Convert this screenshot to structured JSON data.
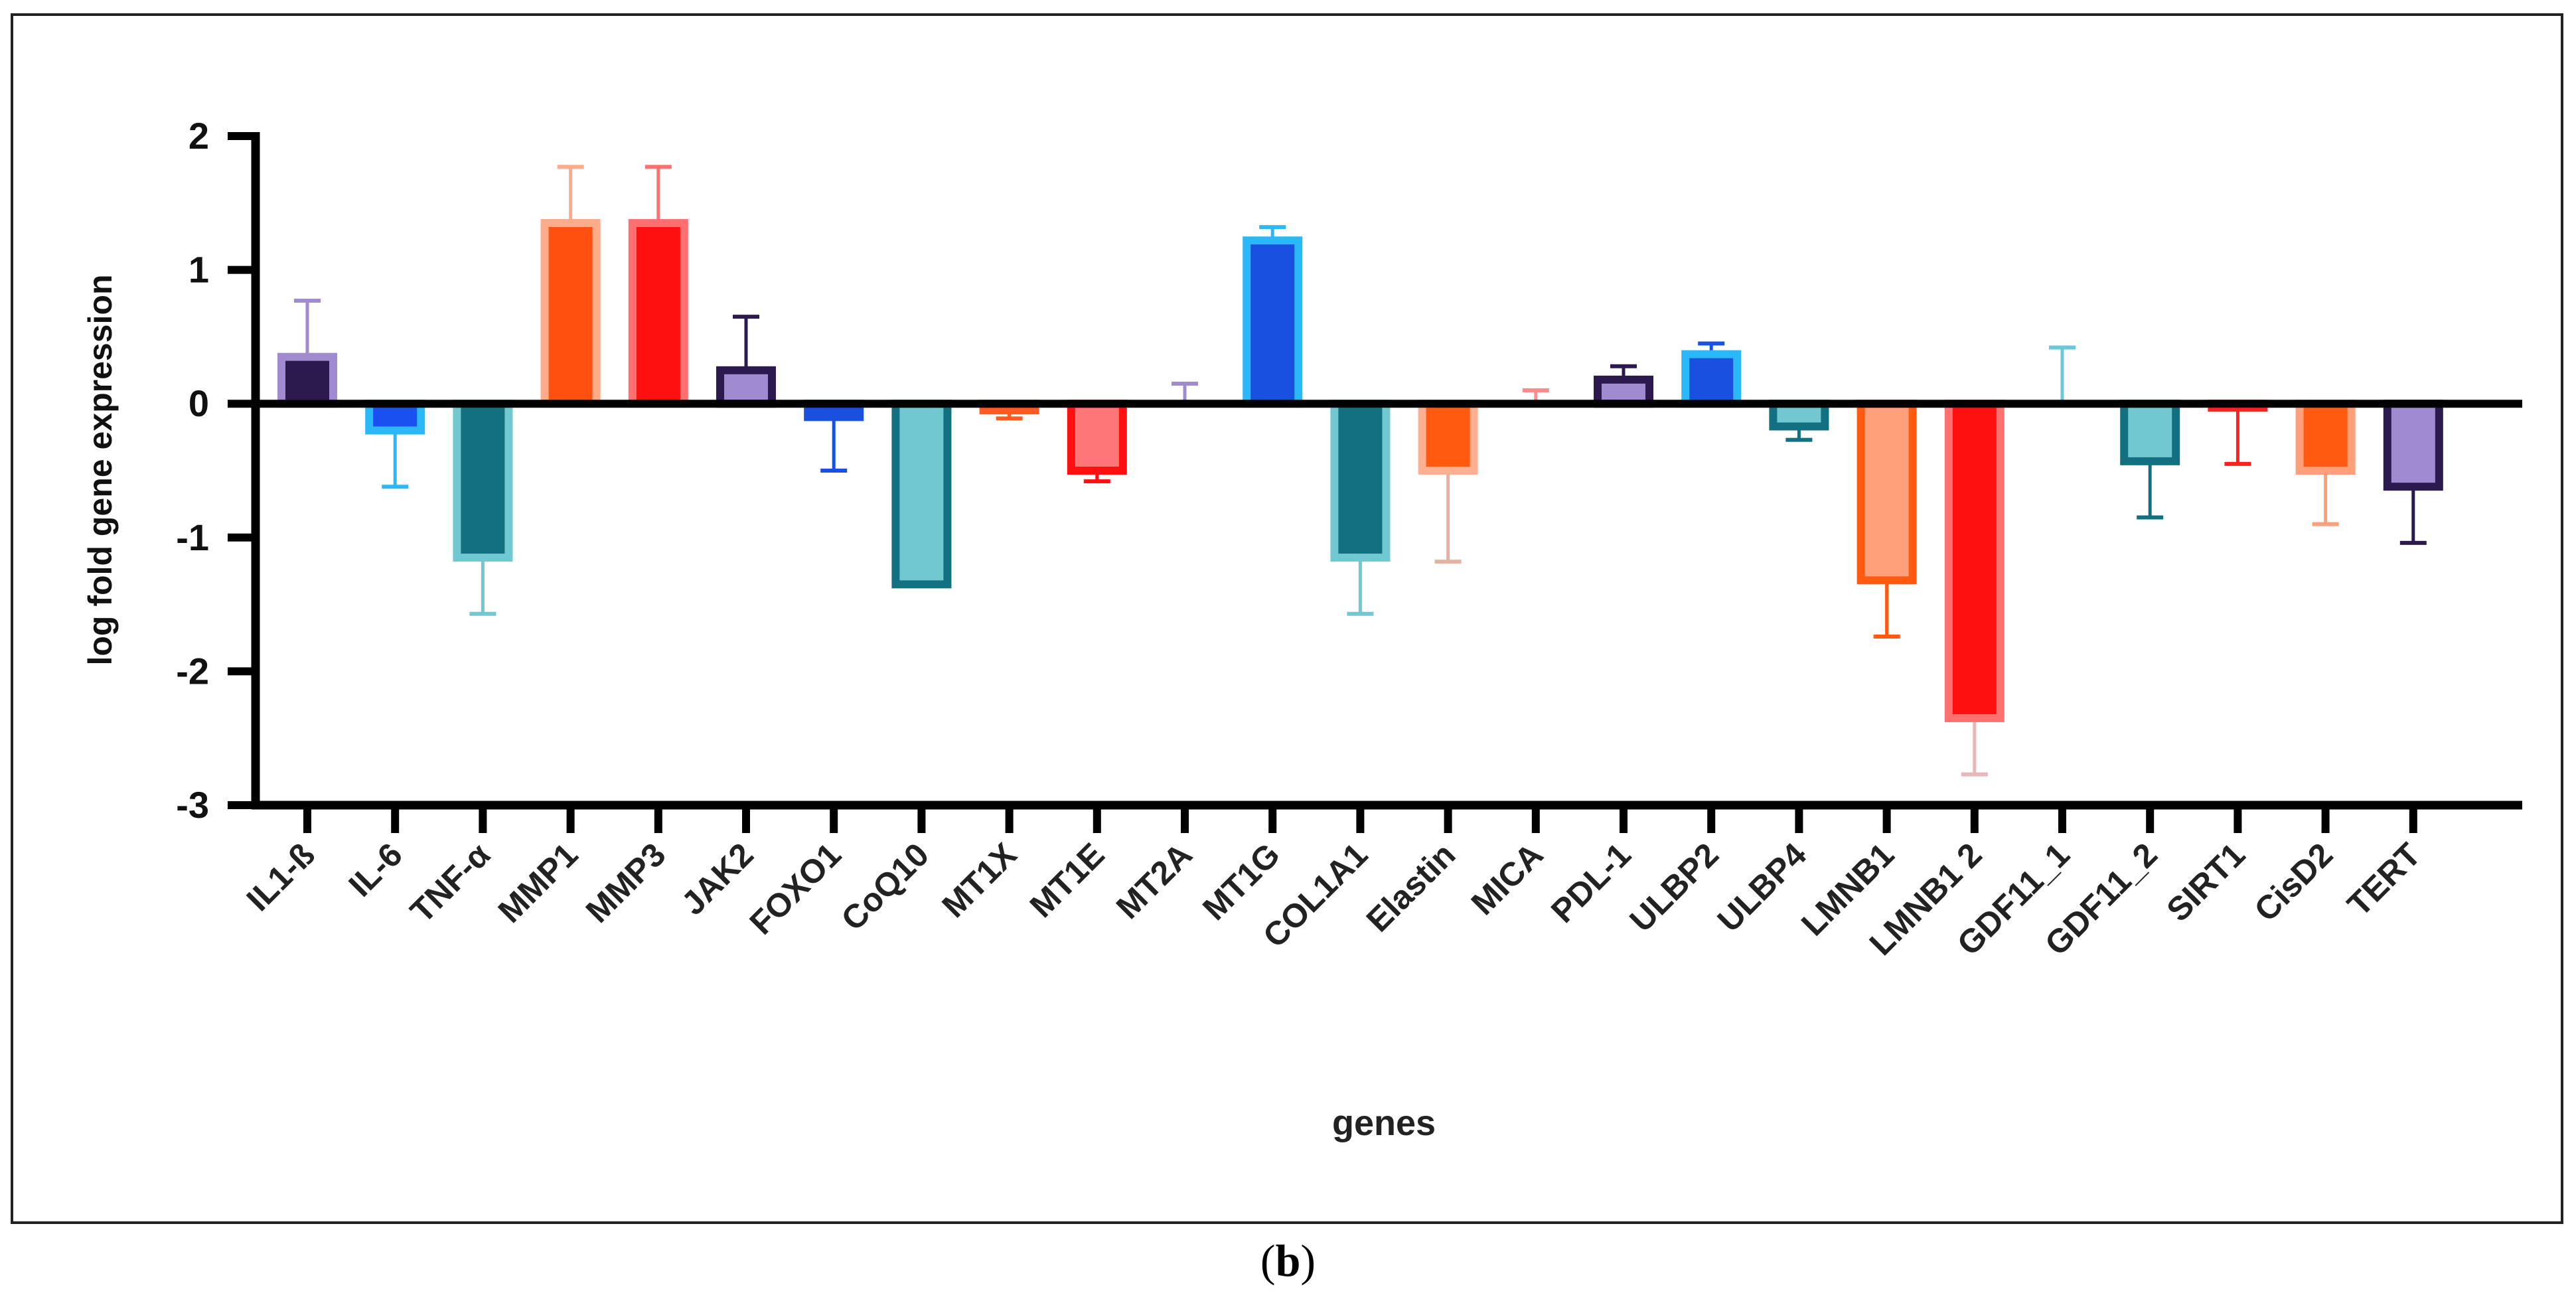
{
  "chart_data": {
    "type": "bar",
    "title": "",
    "xlabel": "genes",
    "ylabel": "log fold gene expression",
    "ylim": [
      -3,
      2
    ],
    "yticks": [
      2,
      1,
      0,
      -1,
      -2,
      -3
    ],
    "ytick_labels": [
      "2",
      "1",
      "0",
      "-1",
      "-2",
      "-3"
    ],
    "categories": [
      "IL1-ß",
      "IL-6",
      "TNF-α",
      "MMP1",
      "MMP3",
      "JAK2",
      "FOXO1",
      "CoQ10",
      "MT1X",
      "MT1E",
      "MT2A",
      "MT1G",
      "COL1A1",
      "Elastin",
      "MICA",
      "PDL-1",
      "ULBP2",
      "ULBP4",
      "LMNB1",
      "LMNB1 2",
      "GDF11_1",
      "GDF11_2",
      "SIRT1",
      "CisD2",
      "TERT"
    ],
    "values": [
      0.35,
      -0.2,
      -1.15,
      1.35,
      1.35,
      0.25,
      -0.1,
      -1.35,
      -0.05,
      -0.5,
      0.0,
      1.22,
      -1.15,
      -0.5,
      0.0,
      0.18,
      0.37,
      -0.17,
      -1.32,
      -2.35,
      0.0,
      -0.43,
      -0.03,
      -0.5,
      -0.62
    ],
    "errors": [
      0.42,
      0.42,
      0.42,
      0.42,
      0.42,
      0.4,
      0.4,
      0.0,
      0.06,
      0.08,
      0.15,
      0.1,
      0.42,
      0.68,
      0.1,
      0.1,
      0.08,
      0.1,
      0.42,
      0.42,
      0.42,
      0.42,
      0.42,
      0.4,
      0.42
    ],
    "fill_colors": [
      "#2c1a4e",
      "#1a50f0",
      "#137080",
      "#ff5010",
      "#ff1010",
      "#a08ad0",
      "#1a50e0",
      "#72c8d0",
      "#ff5b20",
      "#ff7676",
      "#a08ad0",
      "#1a50e0",
      "#137080",
      "#ff5a10",
      "#ff8a8a",
      "#a08ad0",
      "#1a50e0",
      "#72c8d0",
      "#ffa07a",
      "#ff1010",
      "#6cc8d8",
      "#72c8d0",
      "#ff4848",
      "#ff5a10",
      "#a08ad0"
    ],
    "edge_colors": [
      "#a08ad0",
      "#2bb8f8",
      "#72c8d0",
      "#ffaa88",
      "#ff7070",
      "#2c1a4e",
      "#1a50e0",
      "#137080",
      "#ff5b20",
      "#ff1010",
      "#a08ad0",
      "#2bb8f8",
      "#72c8d0",
      "#ffb090",
      "#ff8a8a",
      "#2c1a4e",
      "#2bb8f8",
      "#137080",
      "#ff5a10",
      "#ff7070",
      "#6cc8d8",
      "#137080",
      "#ff2020",
      "#ffa07a",
      "#2c1a4e"
    ],
    "error_colors": [
      "#a08ad0",
      "#2bb8f8",
      "#72c8d0",
      "#ffaa88",
      "#ff7070",
      "#2c1a4e",
      "#1a50e0",
      "#137080",
      "#ff5b20",
      "#ff1010",
      "#a08ad0",
      "#2bb8f8",
      "#72c8d0",
      "#e8b0a0",
      "#ff8a8a",
      "#2c1a4e",
      "#1a50e0",
      "#137080",
      "#ff5a10",
      "#e8b8b8",
      "#6cc8d8",
      "#137080",
      "#ff2020",
      "#ffa07a",
      "#2c1a4e"
    ]
  },
  "caption": {
    "open": "(",
    "label": "b",
    "close": ")"
  }
}
